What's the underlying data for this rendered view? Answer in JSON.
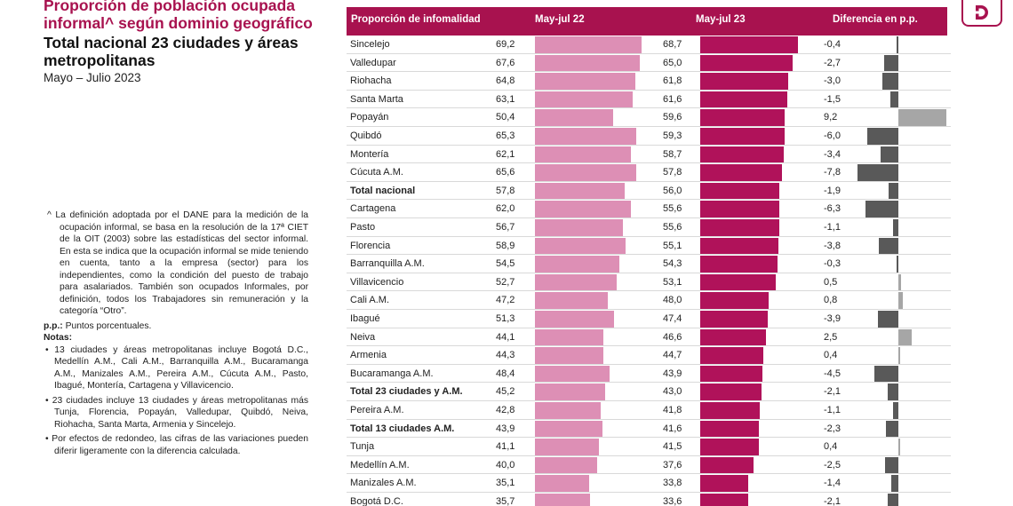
{
  "title": {
    "main": "Proporción de población ocupada informal^ según dominio geográfico",
    "sub": "Total nacional 23 ciudades y áreas metropolitanas",
    "date": "Mayo – Julio 2023"
  },
  "notes": {
    "definition": "^ La definición adoptada por el DANE para la medición de la ocupación informal, se basa en la resolución de la 17ª CIET de la OIT (2003) sobre las estadísticas del sector informal. En esta se indica que la ocupación informal se mide teniendo en cuenta, tanto a la empresa (sector) para los independientes, como la condición del puesto de trabajo para asalariados. También son ocupados Informales, por definición, todos los Trabajadores sin remuneración y la categoría “Otro”.",
    "pp_label": "p.p.:",
    "pp_text": " Puntos porcentuales.",
    "notes_heading": "Notas:",
    "items": [
      "• 13 ciudades y áreas metropolitanas incluye Bogotá D.C., Medellín A.M., Cali A.M., Barranquilla A.M., Bucaramanga A.M., Manizales A.M., Pereira A.M., Cúcuta A.M., Pasto, Ibagué, Montería, Cartagena y Villavicencio.",
      "• 23 ciudades incluye 13 ciudades y áreas metropolitanas más Tunja, Florencia, Popayán, Valledupar, Quibdó, Neiva, Riohacha, Santa Marta, Armenia y Sincelejo.",
      "• Por efectos de redondeo, las cifras de las variaciones pueden diferir ligeramente con la diferencia calculada."
    ]
  },
  "logo": {
    "letter": "D",
    "color": "#a8124f"
  },
  "chart_data": {
    "type": "bar",
    "columns": [
      "Proporción de infomalidad",
      "May-jul 22",
      "May-jul 23",
      "Diferencia en p.p."
    ],
    "colors": {
      "header": "#a8124f",
      "may_jul_22": "#dd8fb5",
      "may_jul_23": "#b0125a",
      "diff_negative": "#595959",
      "diff_positive": "#a6a6a6"
    },
    "rows": [
      {
        "city": "Sincelejo",
        "v22": 69.2,
        "v23": 68.7,
        "diff": -0.4,
        "bold": false
      },
      {
        "city": "Valledupar",
        "v22": 67.6,
        "v23": 65.0,
        "diff": -2.7,
        "bold": false
      },
      {
        "city": "Riohacha",
        "v22": 64.8,
        "v23": 61.8,
        "diff": -3.0,
        "bold": false
      },
      {
        "city": "Santa Marta",
        "v22": 63.1,
        "v23": 61.6,
        "diff": -1.5,
        "bold": false
      },
      {
        "city": "Popayán",
        "v22": 50.4,
        "v23": 59.6,
        "diff": 9.2,
        "bold": false
      },
      {
        "city": "Quibdó",
        "v22": 65.3,
        "v23": 59.3,
        "diff": -6.0,
        "bold": false
      },
      {
        "city": "Montería",
        "v22": 62.1,
        "v23": 58.7,
        "diff": -3.4,
        "bold": false
      },
      {
        "city": "Cúcuta A.M.",
        "v22": 65.6,
        "v23": 57.8,
        "diff": -7.8,
        "bold": false
      },
      {
        "city": "Total nacional",
        "v22": 57.8,
        "v23": 56.0,
        "diff": -1.9,
        "bold": true
      },
      {
        "city": "Cartagena",
        "v22": 62.0,
        "v23": 55.6,
        "diff": -6.3,
        "bold": false
      },
      {
        "city": "Pasto",
        "v22": 56.7,
        "v23": 55.6,
        "diff": -1.1,
        "bold": false
      },
      {
        "city": "Florencia",
        "v22": 58.9,
        "v23": 55.1,
        "diff": -3.8,
        "bold": false
      },
      {
        "city": "Barranquilla A.M.",
        "v22": 54.5,
        "v23": 54.3,
        "diff": -0.3,
        "bold": false
      },
      {
        "city": "Villavicencio",
        "v22": 52.7,
        "v23": 53.1,
        "diff": 0.5,
        "bold": false
      },
      {
        "city": "Cali A.M.",
        "v22": 47.2,
        "v23": 48.0,
        "diff": 0.8,
        "bold": false
      },
      {
        "city": "Ibagué",
        "v22": 51.3,
        "v23": 47.4,
        "diff": -3.9,
        "bold": false
      },
      {
        "city": "Neiva",
        "v22": 44.1,
        "v23": 46.6,
        "diff": 2.5,
        "bold": false
      },
      {
        "city": "Armenia",
        "v22": 44.3,
        "v23": 44.7,
        "diff": 0.4,
        "bold": false
      },
      {
        "city": "Bucaramanga A.M.",
        "v22": 48.4,
        "v23": 43.9,
        "diff": -4.5,
        "bold": false
      },
      {
        "city": "Total 23 ciudades y A.M.",
        "v22": 45.2,
        "v23": 43.0,
        "diff": -2.1,
        "bold": true
      },
      {
        "city": "Pereira A.M.",
        "v22": 42.8,
        "v23": 41.8,
        "diff": -1.1,
        "bold": false
      },
      {
        "city": "Total 13 ciudades A.M.",
        "v22": 43.9,
        "v23": 41.6,
        "diff": -2.3,
        "bold": true
      },
      {
        "city": "Tunja",
        "v22": 41.1,
        "v23": 41.5,
        "diff": 0.4,
        "bold": false
      },
      {
        "city": "Medellín A.M.",
        "v22": 40.0,
        "v23": 37.6,
        "diff": -2.5,
        "bold": false
      },
      {
        "city": "Manizales A.M.",
        "v22": 35.1,
        "v23": 33.8,
        "diff": -1.4,
        "bold": false
      },
      {
        "city": "Bogotá D.C.",
        "v22": 35.7,
        "v23": 33.6,
        "diff": -2.1,
        "bold": false
      }
    ]
  }
}
